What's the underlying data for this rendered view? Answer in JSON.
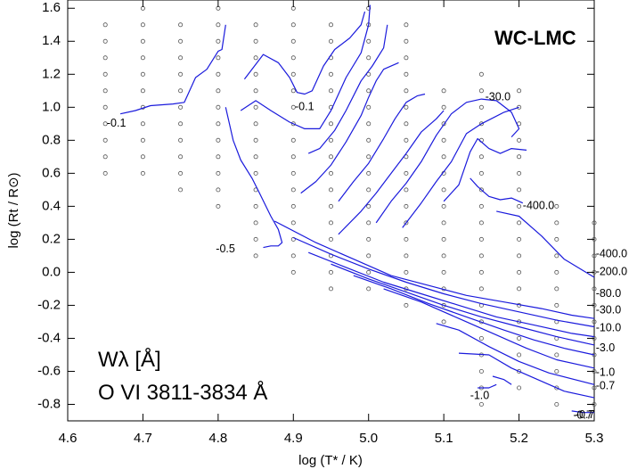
{
  "chart_data": {
    "type": "line",
    "model_label": "WC-LMC",
    "quantity_label": "Wλ [Å]",
    "line_label": "O VI 3811-3834 Å",
    "xlabel": "log (T* / K)",
    "ylabel": "log (Rt / R⊙)",
    "xlim": [
      4.6,
      5.3
    ],
    "ylim": [
      -0.9,
      1.65
    ],
    "x_ticks": [
      4.6,
      4.7,
      4.8,
      4.9,
      5.0,
      5.1,
      5.2,
      5.3
    ],
    "x_tick_labels": [
      "4.6",
      "4.7",
      "4.8",
      "4.9",
      "5.0",
      "5.1",
      "5.2",
      "5.3"
    ],
    "y_ticks": [
      -0.8,
      -0.6,
      -0.4,
      -0.2,
      0.0,
      0.2,
      0.4,
      0.6,
      0.8,
      1.0,
      1.2,
      1.4,
      1.6
    ],
    "y_tick_labels": [
      "-0.8",
      "-0.6",
      "-0.4",
      "-0.2",
      "0.0",
      "0.2",
      "0.4",
      "0.6",
      "0.8",
      "1.0",
      "1.2",
      "1.4",
      "1.6"
    ],
    "line_color": "#1a1adc",
    "grid_columns": [
      {
        "x": 4.65,
        "y_min": 0.6,
        "y_max": 1.5
      },
      {
        "x": 4.7,
        "y_min": 0.6,
        "y_max": 1.6
      },
      {
        "x": 4.75,
        "y_min": 0.5,
        "y_max": 1.5
      },
      {
        "x": 4.8,
        "y_min": 0.4,
        "y_max": 1.6
      },
      {
        "x": 4.85,
        "y_min": 0.1,
        "y_max": 1.5
      },
      {
        "x": 4.9,
        "y_min": 0.0,
        "y_max": 1.6
      },
      {
        "x": 4.95,
        "y_min": -0.1,
        "y_max": 1.5
      },
      {
        "x": 5.0,
        "y_min": -0.1,
        "y_max": 1.6
      },
      {
        "x": 5.05,
        "y_min": -0.2,
        "y_max": 1.5
      },
      {
        "x": 5.1,
        "y_min": -0.3,
        "y_max": 1.1
      },
      {
        "x": 5.15,
        "y_min": -0.8,
        "y_max": 1.2
      },
      {
        "x": 5.2,
        "y_min": -0.7,
        "y_max": 1.1
      },
      {
        "x": 5.25,
        "y_min": -0.8,
        "y_max": 0.4
      },
      {
        "x": 5.3,
        "y_min": -0.8,
        "y_max": 0.3
      }
    ],
    "series": [
      {
        "name": "-0.1",
        "points": [
          [
            4.67,
            0.96
          ],
          [
            4.69,
            0.98
          ],
          [
            4.71,
            1.01
          ],
          [
            4.74,
            1.02
          ],
          [
            4.755,
            1.03
          ],
          [
            4.77,
            1.18
          ],
          [
            4.785,
            1.23
          ],
          [
            4.8,
            1.34
          ],
          [
            4.805,
            1.35
          ],
          [
            4.81,
            1.5
          ]
        ]
      },
      {
        "name": "-0.1",
        "points": [
          [
            4.835,
            1.17
          ],
          [
            4.86,
            1.32
          ],
          [
            4.88,
            1.27
          ],
          [
            4.895,
            1.18
          ],
          [
            4.905,
            1.09
          ],
          [
            4.915,
            1.08
          ],
          [
            4.925,
            1.1
          ],
          [
            4.94,
            1.25
          ],
          [
            4.955,
            1.35
          ],
          [
            4.975,
            1.42
          ],
          [
            4.99,
            1.5
          ],
          [
            4.995,
            1.58
          ]
        ]
      },
      {
        "name": "-0.5",
        "points": [
          [
            4.81,
            1.0
          ],
          [
            4.815,
            0.9
          ],
          [
            4.82,
            0.8
          ],
          [
            4.83,
            0.68
          ],
          [
            4.845,
            0.57
          ],
          [
            4.855,
            0.48
          ],
          [
            4.87,
            0.34
          ],
          [
            4.88,
            0.26
          ],
          [
            4.885,
            0.18
          ],
          [
            4.88,
            0.16
          ],
          [
            4.87,
            0.16
          ],
          [
            4.86,
            0.15
          ]
        ]
      },
      {
        "name": "",
        "points": [
          [
            4.83,
            0.98
          ],
          [
            4.85,
            1.04
          ],
          [
            4.87,
            0.98
          ],
          [
            4.895,
            0.91
          ],
          [
            4.915,
            0.87
          ],
          [
            4.935,
            0.87
          ],
          [
            4.95,
            0.98
          ],
          [
            4.97,
            1.18
          ],
          [
            4.99,
            1.33
          ],
          [
            5.0,
            1.5
          ],
          [
            5.002,
            1.62
          ]
        ]
      },
      {
        "name": "",
        "points": [
          [
            4.92,
            0.72
          ],
          [
            4.935,
            0.75
          ],
          [
            4.955,
            0.86
          ],
          [
            4.97,
            0.98
          ],
          [
            4.99,
            1.16
          ],
          [
            5.005,
            1.25
          ],
          [
            5.02,
            1.36
          ],
          [
            5.025,
            1.5
          ]
        ]
      },
      {
        "name": "",
        "points": [
          [
            4.91,
            0.48
          ],
          [
            4.93,
            0.55
          ],
          [
            4.95,
            0.65
          ],
          [
            4.97,
            0.79
          ],
          [
            4.99,
            0.95
          ],
          [
            5.0,
            1.06
          ],
          [
            5.01,
            1.16
          ],
          [
            5.02,
            1.23
          ],
          [
            5.04,
            1.27
          ]
        ]
      },
      {
        "name": "",
        "points": [
          [
            4.96,
            0.43
          ],
          [
            4.98,
            0.55
          ],
          [
            5.0,
            0.66
          ],
          [
            5.02,
            0.81
          ],
          [
            5.035,
            0.93
          ],
          [
            5.05,
            1.03
          ],
          [
            5.065,
            1.07
          ],
          [
            5.075,
            1.08
          ]
        ]
      },
      {
        "name": "",
        "points": [
          [
            4.96,
            0.23
          ],
          [
            4.99,
            0.37
          ],
          [
            5.01,
            0.48
          ],
          [
            5.03,
            0.6
          ],
          [
            5.05,
            0.72
          ],
          [
            5.07,
            0.85
          ],
          [
            5.09,
            0.93
          ],
          [
            5.1,
            0.98
          ]
        ]
      },
      {
        "name": "-30.0",
        "points": [
          [
            5.01,
            0.3
          ],
          [
            5.03,
            0.43
          ],
          [
            5.05,
            0.54
          ],
          [
            5.07,
            0.67
          ],
          [
            5.09,
            0.83
          ],
          [
            5.11,
            0.96
          ],
          [
            5.13,
            1.03
          ],
          [
            5.15,
            1.05
          ],
          [
            5.17,
            1.04
          ],
          [
            5.19,
            0.97
          ],
          [
            5.2,
            0.87
          ],
          [
            5.19,
            0.82
          ]
        ]
      },
      {
        "name": "",
        "points": [
          [
            5.045,
            0.27
          ],
          [
            5.07,
            0.42
          ],
          [
            5.09,
            0.55
          ],
          [
            5.11,
            0.67
          ],
          [
            5.13,
            0.84
          ],
          [
            5.15,
            0.9
          ],
          [
            5.18,
            0.97
          ],
          [
            5.2,
            1.0
          ]
        ]
      },
      {
        "name": "",
        "points": [
          [
            5.1,
            0.43
          ],
          [
            5.12,
            0.53
          ],
          [
            5.135,
            0.73
          ],
          [
            5.145,
            0.81
          ],
          [
            5.16,
            0.75
          ],
          [
            5.175,
            0.72
          ],
          [
            5.19,
            0.75
          ],
          [
            5.21,
            0.74
          ]
        ]
      },
      {
        "name": "",
        "points": [
          [
            5.135,
            0.57
          ],
          [
            5.145,
            0.52
          ],
          [
            5.16,
            0.46
          ],
          [
            5.175,
            0.44
          ],
          [
            5.19,
            0.45
          ],
          [
            5.205,
            0.42
          ]
        ]
      },
      {
        "name": "-400.0",
        "points": [
          [
            5.17,
            0.37
          ],
          [
            5.2,
            0.34
          ],
          [
            5.23,
            0.22
          ],
          [
            5.26,
            0.08
          ],
          [
            5.3,
            -0.03
          ]
        ]
      },
      {
        "name": "-400.0",
        "points": [
          [
            4.875,
            0.31
          ],
          [
            4.93,
            0.18
          ],
          [
            4.98,
            0.08
          ],
          [
            5.03,
            -0.02
          ],
          [
            5.08,
            -0.08
          ],
          [
            5.13,
            -0.14
          ],
          [
            5.18,
            -0.18
          ],
          [
            5.23,
            -0.22
          ],
          [
            5.27,
            -0.26
          ],
          [
            5.3,
            -0.28
          ]
        ]
      },
      {
        "name": "-200.0",
        "points": [
          [
            4.9,
            0.21
          ],
          [
            4.95,
            0.11
          ],
          [
            5.0,
            0.02
          ],
          [
            5.05,
            -0.06
          ],
          [
            5.1,
            -0.13
          ],
          [
            5.15,
            -0.19
          ],
          [
            5.2,
            -0.24
          ],
          [
            5.25,
            -0.29
          ],
          [
            5.3,
            -0.33
          ]
        ]
      },
      {
        "name": "-80.0",
        "points": [
          [
            4.92,
            0.12
          ],
          [
            4.97,
            0.03
          ],
          [
            5.02,
            -0.06
          ],
          [
            5.07,
            -0.13
          ],
          [
            5.12,
            -0.2
          ],
          [
            5.17,
            -0.27
          ],
          [
            5.22,
            -0.32
          ],
          [
            5.27,
            -0.37
          ],
          [
            5.3,
            -0.39
          ]
        ]
      },
      {
        "name": "-30.0",
        "points": [
          [
            4.95,
            0.05
          ],
          [
            5.0,
            -0.04
          ],
          [
            5.05,
            -0.12
          ],
          [
            5.1,
            -0.2
          ],
          [
            5.15,
            -0.27
          ],
          [
            5.2,
            -0.33
          ],
          [
            5.25,
            -0.39
          ],
          [
            5.3,
            -0.44
          ]
        ]
      },
      {
        "name": "-10.0",
        "points": [
          [
            4.98,
            -0.02
          ],
          [
            5.03,
            -0.1
          ],
          [
            5.08,
            -0.19
          ],
          [
            5.13,
            -0.27
          ],
          [
            5.18,
            -0.35
          ],
          [
            5.22,
            -0.41
          ],
          [
            5.26,
            -0.46
          ],
          [
            5.3,
            -0.5
          ]
        ]
      },
      {
        "name": "-3.0",
        "points": [
          [
            5.02,
            -0.1
          ],
          [
            5.07,
            -0.18
          ],
          [
            5.12,
            -0.28
          ],
          [
            5.17,
            -0.38
          ],
          [
            5.21,
            -0.46
          ],
          [
            5.25,
            -0.53
          ],
          [
            5.3,
            -0.58
          ]
        ]
      },
      {
        "name": "-1.0",
        "points": [
          [
            5.09,
            -0.31
          ],
          [
            5.12,
            -0.35
          ],
          [
            5.16,
            -0.45
          ],
          [
            5.2,
            -0.54
          ],
          [
            5.24,
            -0.61
          ],
          [
            5.3,
            -0.68
          ]
        ]
      },
      {
        "name": "-0.7",
        "points": [
          [
            5.12,
            -0.49
          ],
          [
            5.16,
            -0.5
          ],
          [
            5.19,
            -0.58
          ],
          [
            5.22,
            -0.64
          ],
          [
            5.26,
            -0.72
          ],
          [
            5.3,
            -0.76
          ]
        ]
      },
      {
        "name": "-1.0",
        "points": [
          [
            5.145,
            -0.7
          ],
          [
            5.16,
            -0.7
          ],
          [
            5.17,
            -0.68
          ]
        ]
      },
      {
        "name": "-0.7",
        "points": [
          [
            5.165,
            -0.63
          ],
          [
            5.18,
            -0.65
          ],
          [
            5.19,
            -0.68
          ]
        ]
      },
      {
        "name": "-0.7",
        "points": [
          [
            5.27,
            -0.84
          ],
          [
            5.285,
            -0.85
          ],
          [
            5.3,
            -0.85
          ]
        ]
      }
    ],
    "labels": [
      {
        "text": "-0.1",
        "x": 4.652,
        "y": 0.9
      },
      {
        "text": "-0.1",
        "x": 4.902,
        "y": 1.0
      },
      {
        "text": "-0.5",
        "x": 4.797,
        "y": 0.14
      },
      {
        "text": "-30.0",
        "x": 5.155,
        "y": 1.06
      },
      {
        "text": "-400.0",
        "x": 5.205,
        "y": 0.4
      },
      {
        "text": "-400.0",
        "x": 5.302,
        "y": 0.11
      },
      {
        "text": "-200.0",
        "x": 5.302,
        "y": 0.0
      },
      {
        "text": "-80.0",
        "x": 5.302,
        "y": -0.13
      },
      {
        "text": "-30.0",
        "x": 5.302,
        "y": -0.23
      },
      {
        "text": "-10.0",
        "x": 5.302,
        "y": -0.34
      },
      {
        "text": "-3.0",
        "x": 5.302,
        "y": -0.46
      },
      {
        "text": "-1.0",
        "x": 5.302,
        "y": -0.61
      },
      {
        "text": "-0.7",
        "x": 5.302,
        "y": -0.69
      },
      {
        "text": "-1.0",
        "x": 5.135,
        "y": -0.75
      },
      {
        "text": "-0.7",
        "x": 5.272,
        "y": -0.87
      },
      {
        "text": "-0.7",
        "x": 5.275,
        "y": -0.865
      }
    ]
  }
}
